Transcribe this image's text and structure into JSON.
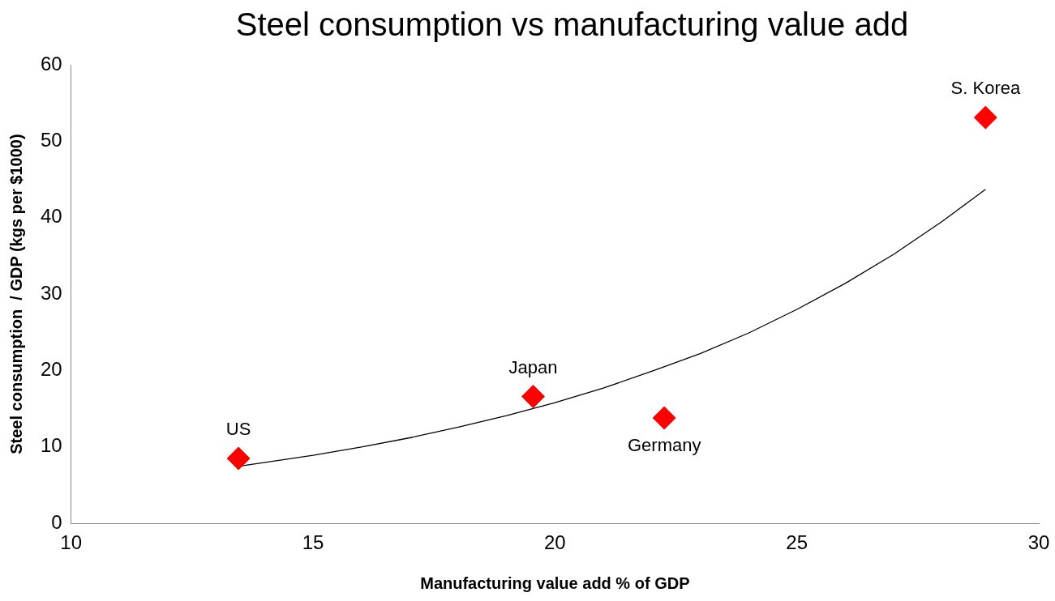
{
  "chart_data": {
    "type": "scatter",
    "title": "Steel consumption vs manufacturing value add",
    "xlabel": "Manufacturing value add % of GDP",
    "ylabel": "Steel consumption  / GDP (kgs per $1000)",
    "series": [
      {
        "type": "scatter",
        "color": "#ff0000",
        "marker": "diamond",
        "x": [
          13.46,
          19.55,
          22.26,
          28.9
        ],
        "values": [
          8.5,
          16.6,
          13.8,
          53.1
        ]
      },
      {
        "type": "line",
        "color": "#000000",
        "marker": "none",
        "x": [
          13.5,
          15,
          16,
          17,
          18,
          19,
          20,
          21,
          22,
          23,
          24,
          25,
          26,
          27,
          28,
          28.9
        ],
        "values": [
          7.5,
          8.9,
          10.0,
          11.2,
          12.6,
          14.1,
          15.8,
          17.7,
          19.9,
          22.2,
          24.9,
          28.0,
          31.4,
          35.2,
          39.5,
          43.7
        ]
      }
    ],
    "annotations": [
      {
        "text": "US",
        "x": 13.46,
        "y": 8.5
      },
      {
        "text": "Japan",
        "x": 19.55,
        "y": 16.6
      },
      {
        "text": "Germany",
        "x": 22.26,
        "y": 13.8
      },
      {
        "text": "S. Korea",
        "x": 28.9,
        "y": 53.1
      }
    ],
    "xlim": [
      10,
      30
    ],
    "xticks": [
      10,
      15,
      20,
      25,
      30
    ],
    "ylim": [
      0,
      60
    ],
    "yticks": [
      0,
      10,
      20,
      30,
      40,
      50,
      60
    ],
    "grid": false,
    "legend": false
  }
}
